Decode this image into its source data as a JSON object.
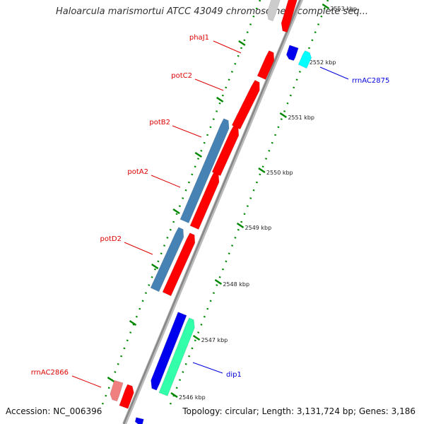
{
  "title": "Haloarcula marismortui ATCC 43049 chromosome I, complete seq...",
  "footer": {
    "accession": "Accession: NC_006396",
    "topology": "Topology: circular; Length: 3,131,724 bp; Genes: 3,186"
  },
  "ticks": [
    {
      "label": "2553 kbp",
      "faded": true
    },
    {
      "label": "2552 kbp"
    },
    {
      "label": "2551 kbp"
    },
    {
      "label": "2550 kbp"
    },
    {
      "label": "2549 kbp"
    },
    {
      "label": "2548 kbp"
    },
    {
      "label": "2547 kbp"
    },
    {
      "label": "2546 kbp"
    }
  ],
  "gene_labels": [
    {
      "name": "phaJ1",
      "color": "#dd0000"
    },
    {
      "name": "potC2",
      "color": "#dd0000"
    },
    {
      "name": "potB2",
      "color": "#dd0000"
    },
    {
      "name": "potA2",
      "color": "#dd0000"
    },
    {
      "name": "potD2",
      "color": "#dd0000"
    },
    {
      "name": "rrnAC2866",
      "color": "#dd0000"
    },
    {
      "name": "rrnAC2875",
      "color": "#0000dd"
    },
    {
      "name": "dip1",
      "color": "#0000dd"
    }
  ],
  "colors": {
    "backbone": "#888888",
    "red_gene": "#ff0000",
    "pink_gene": "#f08080",
    "steelblue_gene": "#4682b4",
    "blue_gene": "#0000ee",
    "cyan_gene": "#00ffff",
    "mint_gene": "#33ffaa",
    "tick_green": "#008800",
    "grey_gene": "#cccccc"
  }
}
